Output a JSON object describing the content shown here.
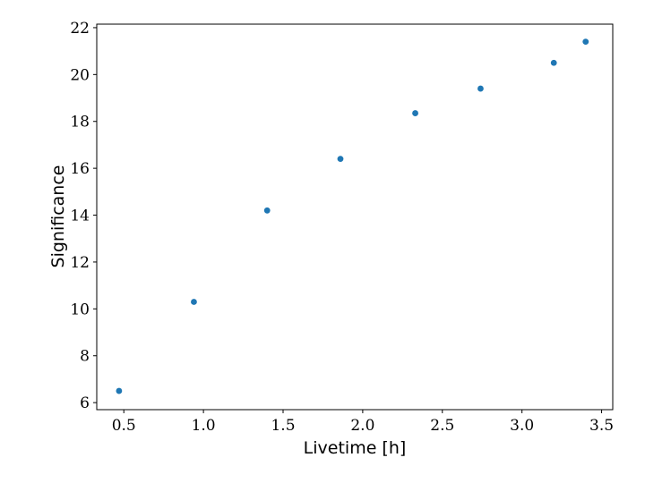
{
  "chart_data": {
    "type": "scatter",
    "xlabel": "Livetime [h]",
    "ylabel": "Significance",
    "xlim": [
      0.33,
      3.57
    ],
    "ylim": [
      5.7,
      22.15
    ],
    "xticks": [
      0.5,
      1.0,
      1.5,
      2.0,
      2.5,
      3.0,
      3.5
    ],
    "xtick_labels": [
      "0.5",
      "1.0",
      "1.5",
      "2.0",
      "2.5",
      "3.0",
      "3.5"
    ],
    "yticks": [
      6,
      8,
      10,
      12,
      14,
      16,
      18,
      20,
      22
    ],
    "ytick_labels": [
      "6",
      "8",
      "10",
      "12",
      "14",
      "16",
      "18",
      "20",
      "22"
    ],
    "grid": false,
    "series": [
      {
        "color": "#1f77b4",
        "points": [
          {
            "x": 0.47,
            "y": 6.5
          },
          {
            "x": 0.94,
            "y": 10.3
          },
          {
            "x": 1.4,
            "y": 14.2
          },
          {
            "x": 1.86,
            "y": 16.4
          },
          {
            "x": 2.33,
            "y": 18.35
          },
          {
            "x": 2.74,
            "y": 19.4
          },
          {
            "x": 3.2,
            "y": 20.5
          },
          {
            "x": 3.4,
            "y": 21.4
          }
        ]
      }
    ]
  }
}
